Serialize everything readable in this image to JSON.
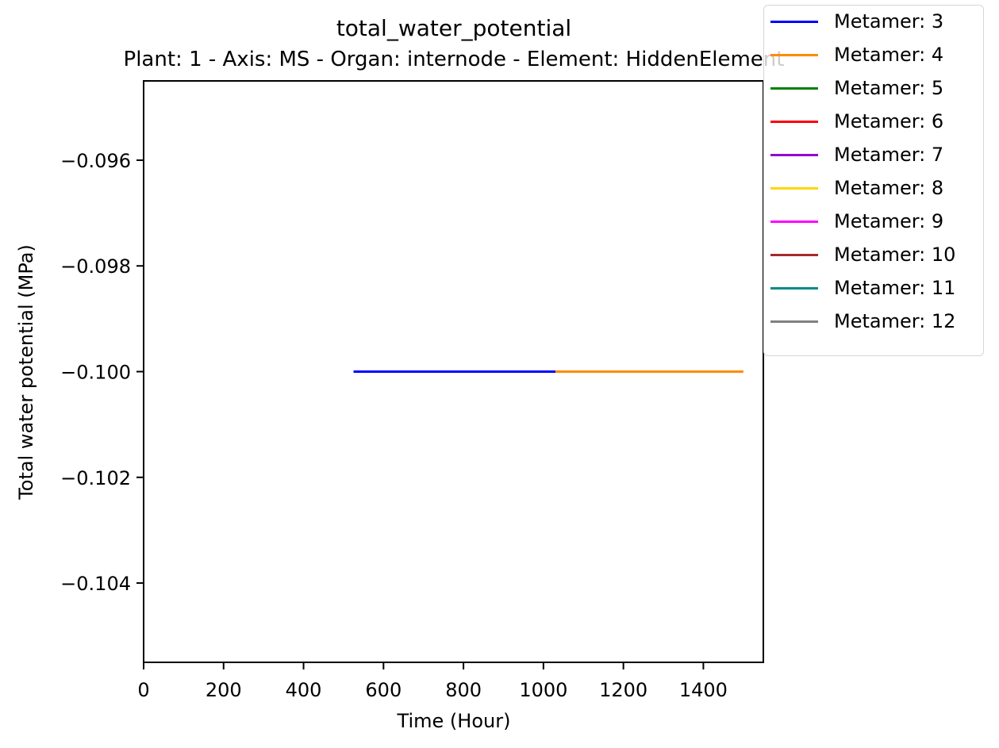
{
  "chart_data": {
    "type": "line",
    "title": "total_water_potential",
    "subtitle": "Plant: 1 - Axis: MS - Organ: internode - Element: HiddenElement",
    "xlabel": "Time (Hour)",
    "ylabel": "Total water potential (MPa)",
    "xlim": [
      0,
      1550
    ],
    "ylim": [
      -0.1055,
      -0.0945
    ],
    "xticks": [
      0,
      200,
      400,
      600,
      800,
      1000,
      1200,
      1400
    ],
    "xtick_labels": [
      "0",
      "200",
      "400",
      "600",
      "800",
      "1000",
      "1200",
      "1400"
    ],
    "yticks": [
      -0.104,
      -0.102,
      -0.1,
      -0.098,
      -0.096
    ],
    "ytick_labels": [
      "−0.104",
      "−0.102",
      "−0.100",
      "−0.098",
      "−0.096"
    ],
    "grid": false,
    "legend_position": "outside top-right",
    "series": [
      {
        "name": "Metamer: 3",
        "color": "#0000ff",
        "x": [
          525,
          1030
        ],
        "y": [
          -0.1,
          -0.1
        ]
      },
      {
        "name": "Metamer: 4",
        "color": "#ff8c00",
        "x": [
          1030,
          1500
        ],
        "y": [
          -0.1,
          -0.1
        ]
      },
      {
        "name": "Metamer: 5",
        "color": "#008000",
        "x": [],
        "y": []
      },
      {
        "name": "Metamer: 6",
        "color": "#ff0000",
        "x": [],
        "y": []
      },
      {
        "name": "Metamer: 7",
        "color": "#9400d3",
        "x": [],
        "y": []
      },
      {
        "name": "Metamer: 8",
        "color": "#ffd700",
        "x": [],
        "y": []
      },
      {
        "name": "Metamer: 9",
        "color": "#ff00ff",
        "x": [],
        "y": []
      },
      {
        "name": "Metamer: 10",
        "color": "#a52a2a",
        "x": [],
        "y": []
      },
      {
        "name": "Metamer: 11",
        "color": "#008b8b",
        "x": [],
        "y": []
      },
      {
        "name": "Metamer: 12",
        "color": "#808080",
        "x": [],
        "y": []
      }
    ]
  }
}
